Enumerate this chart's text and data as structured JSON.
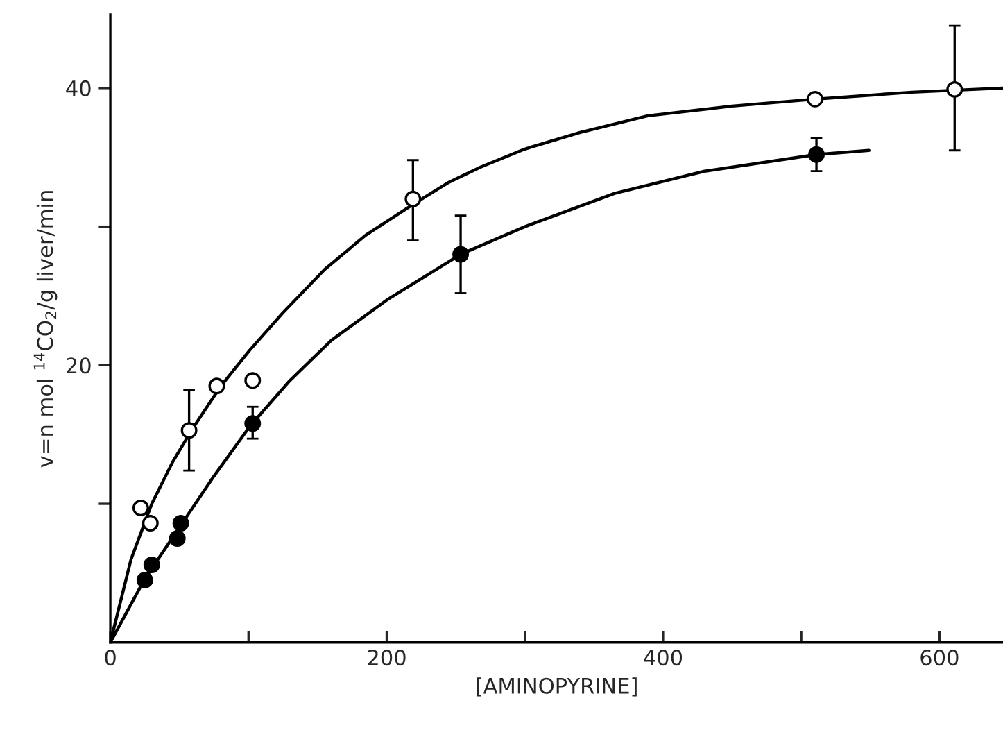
{
  "chart_data": {
    "type": "scatter",
    "xlabel": "[AMINOPYRINE]",
    "ylabel": "v=n mol $^{14}$CO$_{2}$/g liver/min",
    "xlim": [
      0,
      646
    ],
    "ylim": [
      0,
      45.3
    ],
    "xticks": [
      0,
      {
        "value": 100,
        "label": null
      },
      200,
      {
        "value": 300,
        "label": null
      },
      400,
      {
        "value": 500,
        "label": null
      },
      600
    ],
    "yticks": [
      {
        "value": 10,
        "label": null
      },
      20,
      {
        "value": 30,
        "label": null
      },
      40
    ],
    "grid": false,
    "legend": false,
    "series": [
      {
        "type": "line",
        "color": "#000000",
        "marker": "none",
        "line_style": "solid",
        "x": [
          0,
          15,
          30,
          45,
          60,
          80,
          101,
          125,
          155,
          185,
          219,
          245,
          268,
          300,
          340,
          389,
          450,
          510,
          580,
          646
        ],
        "values": [
          0,
          6,
          10,
          13,
          15.5,
          18.5,
          21.1,
          23.8,
          26.9,
          29.4,
          31.6,
          33.2,
          34.3,
          35.6,
          36.8,
          38.0,
          38.7,
          39.2,
          39.7,
          40.0
        ]
      },
      {
        "type": "line",
        "color": "#000000",
        "marker": "none",
        "line_style": "solid",
        "x": [
          0,
          25,
          50,
          75,
          101,
          130,
          160,
          200,
          253.5,
          300,
          365,
          430,
          511,
          549
        ],
        "values": [
          0,
          4.6,
          8.3,
          12.0,
          15.6,
          18.9,
          21.8,
          24.7,
          28.0,
          30.0,
          32.4,
          34.0,
          35.2,
          35.5
        ]
      },
      {
        "color": "#ffffff",
        "marker": "circle",
        "x": [
          22,
          29,
          57,
          77,
          103,
          219,
          510,
          611
        ],
        "values": [
          9.7,
          8.6,
          15.3,
          18.5,
          18.9,
          32.0,
          39.2,
          39.9
        ],
        "errors": [
          null,
          null,
          [
            12.4,
            18.2
          ],
          null,
          null,
          [
            29.0,
            34.8
          ],
          null,
          [
            35.5,
            44.5
          ]
        ]
      },
      {
        "color": "#000000",
        "marker": "circle",
        "x": [
          25,
          30,
          48.5,
          51,
          103,
          253.5,
          511
        ],
        "values": [
          4.5,
          5.6,
          7.5,
          8.6,
          15.8,
          28.0,
          35.2
        ],
        "errors": [
          null,
          null,
          null,
          null,
          [
            14.7,
            17.0
          ],
          [
            25.2,
            30.8
          ],
          [
            34.0,
            36.4
          ]
        ]
      }
    ]
  }
}
